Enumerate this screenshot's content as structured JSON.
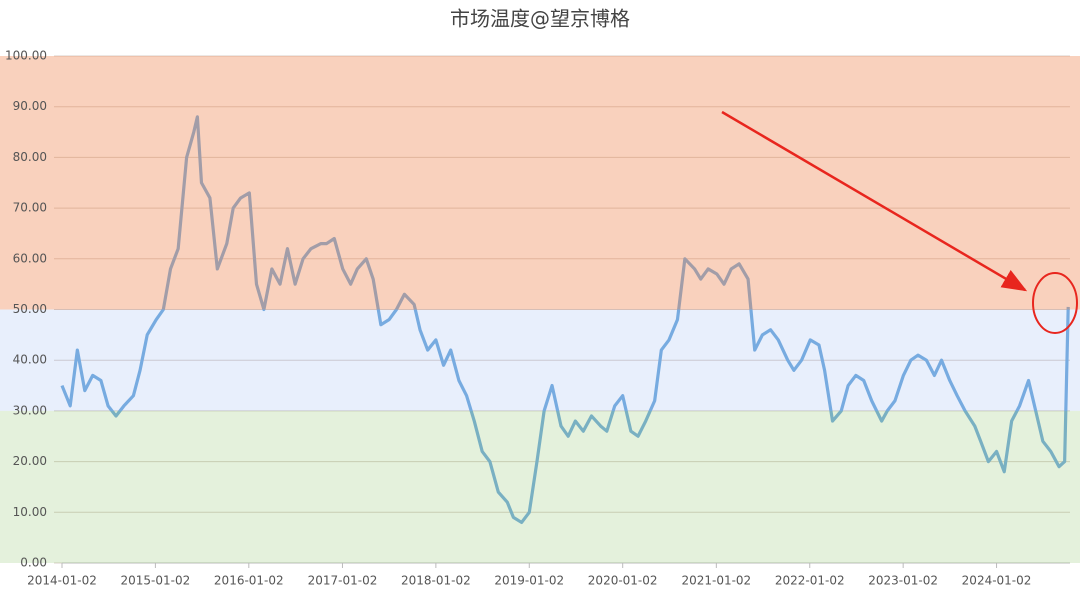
{
  "chart_data": {
    "type": "line",
    "title": "市场温度@望京博格",
    "x": [
      "2014-01-02",
      "2014-02-03",
      "2014-03-03",
      "2014-04-01",
      "2014-05-02",
      "2014-06-03",
      "2014-07-01",
      "2014-08-01",
      "2014-09-01",
      "2014-10-08",
      "2014-11-03",
      "2014-12-01",
      "2015-01-05",
      "2015-02-02",
      "2015-03-02",
      "2015-04-01",
      "2015-05-04",
      "2015-06-01",
      "2015-06-15",
      "2015-07-01",
      "2015-08-03",
      "2015-09-01",
      "2015-10-08",
      "2015-11-02",
      "2015-12-01",
      "2016-01-04",
      "2016-02-01",
      "2016-03-01",
      "2016-04-01",
      "2016-05-03",
      "2016-06-01",
      "2016-07-01",
      "2016-08-01",
      "2016-09-01",
      "2016-10-10",
      "2016-11-01",
      "2016-12-01",
      "2017-01-03",
      "2017-02-03",
      "2017-03-01",
      "2017-04-05",
      "2017-05-02",
      "2017-06-01",
      "2017-07-03",
      "2017-08-01",
      "2017-09-01",
      "2017-10-09",
      "2017-11-01",
      "2017-12-01",
      "2018-01-02",
      "2018-02-01",
      "2018-03-01",
      "2018-04-02",
      "2018-05-02",
      "2018-06-01",
      "2018-07-02",
      "2018-08-01",
      "2018-09-03",
      "2018-10-08",
      "2018-11-01",
      "2018-12-03",
      "2019-01-02",
      "2019-02-01",
      "2019-03-01",
      "2019-04-01",
      "2019-05-06",
      "2019-06-03",
      "2019-07-01",
      "2019-08-01",
      "2019-09-02",
      "2019-10-08",
      "2019-11-01",
      "2019-12-02",
      "2020-01-02",
      "2020-02-03",
      "2020-03-02",
      "2020-04-01",
      "2020-05-06",
      "2020-06-01",
      "2020-07-01",
      "2020-08-03",
      "2020-09-01",
      "2020-10-09",
      "2020-11-02",
      "2020-12-01",
      "2021-01-04",
      "2021-02-01",
      "2021-03-01",
      "2021-04-01",
      "2021-05-06",
      "2021-06-01",
      "2021-07-01",
      "2021-08-02",
      "2021-09-01",
      "2021-10-08",
      "2021-11-01",
      "2021-12-01",
      "2022-01-04",
      "2022-02-07",
      "2022-03-01",
      "2022-04-01",
      "2022-05-05",
      "2022-06-01",
      "2022-07-01",
      "2022-08-01",
      "2022-09-01",
      "2022-10-10",
      "2022-11-01",
      "2022-12-01",
      "2023-01-03",
      "2023-02-01",
      "2023-03-01",
      "2023-04-03",
      "2023-05-04",
      "2023-06-01",
      "2023-07-03",
      "2023-08-01",
      "2023-09-01",
      "2023-10-09",
      "2023-11-01",
      "2023-12-01",
      "2024-01-02",
      "2024-02-01",
      "2024-03-01",
      "2024-04-01",
      "2024-05-06",
      "2024-06-03",
      "2024-07-01",
      "2024-08-01",
      "2024-09-02",
      "2024-09-24",
      "2024-10-08"
    ],
    "values": [
      35,
      31,
      42,
      34,
      37,
      36,
      31,
      29,
      31,
      33,
      38,
      45,
      48,
      50,
      58,
      62,
      80,
      85,
      88,
      75,
      72,
      58,
      63,
      70,
      72,
      73,
      55,
      50,
      58,
      55,
      62,
      55,
      60,
      62,
      63,
      63,
      64,
      58,
      55,
      58,
      60,
      56,
      47,
      48,
      50,
      53,
      51,
      46,
      42,
      44,
      39,
      42,
      36,
      33,
      28,
      22,
      20,
      14,
      12,
      9,
      8,
      10,
      20,
      30,
      35,
      27,
      25,
      28,
      26,
      29,
      27,
      26,
      31,
      33,
      26,
      25,
      28,
      32,
      42,
      44,
      48,
      60,
      58,
      56,
      58,
      57,
      55,
      58,
      59,
      56,
      42,
      45,
      46,
      44,
      40,
      38,
      40,
      44,
      43,
      38,
      28,
      30,
      35,
      37,
      36,
      32,
      28,
      30,
      32,
      37,
      40,
      41,
      40,
      37,
      40,
      36,
      33,
      30,
      27,
      24,
      20,
      22,
      18,
      28,
      31,
      36,
      30,
      24,
      22,
      19,
      20,
      50.5
    ],
    "color": "#6fa8dc",
    "xlim": [
      "2014-01-02",
      "2024-10-15"
    ],
    "xticks": [
      "2014-01-02",
      "2015-01-02",
      "2016-01-02",
      "2017-01-02",
      "2018-01-02",
      "2019-01-02",
      "2020-01-02",
      "2021-01-02",
      "2022-01-02",
      "2023-01-02",
      "2024-01-02"
    ],
    "ylim": [
      0,
      100
    ],
    "yticks": [
      {
        "value": 0,
        "label": "0.00"
      },
      {
        "value": 10,
        "label": "10.00"
      },
      {
        "value": 20,
        "label": "20.00"
      },
      {
        "value": 30,
        "label": "30.00"
      },
      {
        "value": 40,
        "label": "40.00"
      },
      {
        "value": 50,
        "label": "50.00"
      },
      {
        "value": 60,
        "label": "60.00"
      },
      {
        "value": 70,
        "label": "70.00"
      },
      {
        "value": 80,
        "label": "80.00"
      },
      {
        "value": 90,
        "label": "90.00"
      },
      {
        "value": 100,
        "label": "100.00"
      }
    ],
    "grid": true,
    "bands": [
      {
        "from": 0,
        "to": 30,
        "color": "rgba(150,200,120,0.26)"
      },
      {
        "from": 30,
        "to": 50,
        "color": "rgba(150,180,240,0.22)"
      },
      {
        "from": 50,
        "to": 100,
        "color": "rgba(240,140,90,0.40)"
      }
    ]
  }
}
